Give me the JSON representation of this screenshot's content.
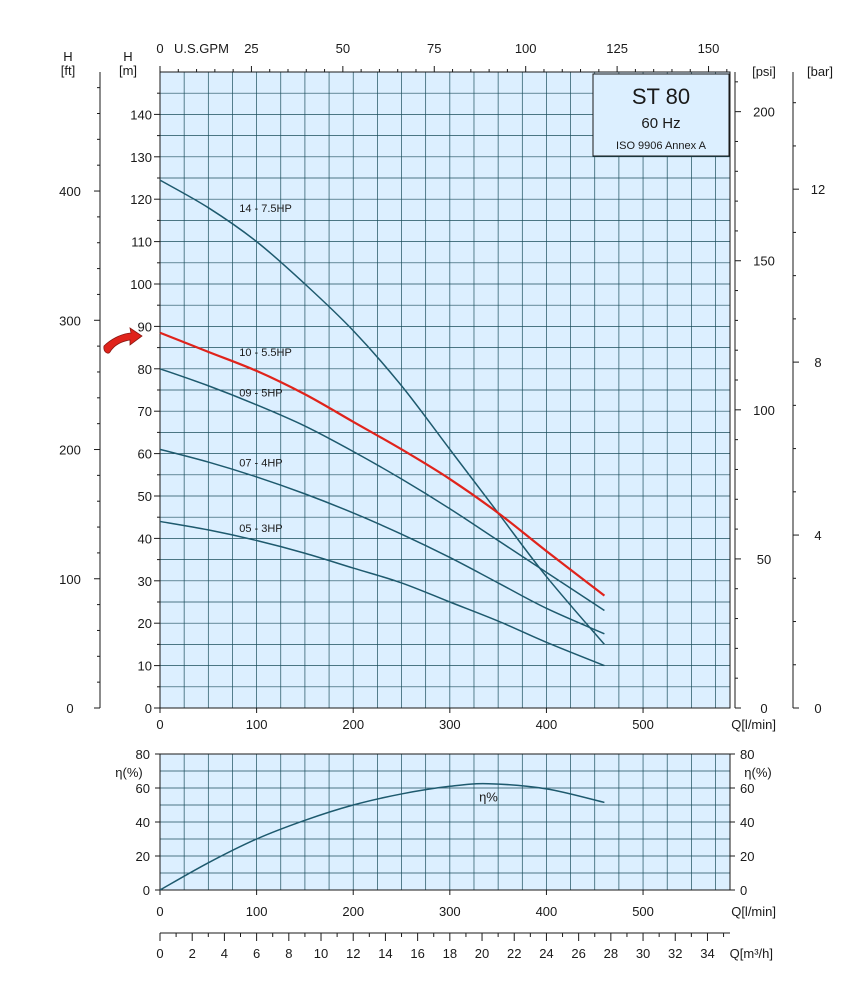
{
  "colors": {
    "grid_fill": "#dcefff",
    "grid_line": "#1b4e5c",
    "curve": "#1e5a6e",
    "highlight": "#e0231b",
    "axis": "#1a1a1a",
    "box_fill": "#dcefff"
  },
  "title_box": {
    "title": "ST 80",
    "frequency": "60 Hz",
    "standard": "ISO 9906 Annex A"
  },
  "arrow_icon": "red-curved-arrow-icon",
  "chart_data": [
    {
      "type": "line",
      "name": "head-curves",
      "x_axis": {
        "label": "Q[l/min]",
        "range": [
          0,
          590
        ],
        "ticks": [
          0,
          100,
          200,
          300,
          400,
          500
        ]
      },
      "x_top_axis": {
        "label": "U.S.GPM",
        "range": [
          0,
          155.87
        ],
        "ticks": [
          0,
          25,
          50,
          75,
          100,
          125,
          150
        ]
      },
      "y_axis": {
        "label": "H",
        "unit": "[m]",
        "range": [
          0,
          150
        ],
        "ticks": [
          0,
          10,
          20,
          30,
          40,
          50,
          60,
          70,
          80,
          90,
          100,
          110,
          120,
          130,
          140
        ]
      },
      "y_left_axis": {
        "label": "H",
        "unit": "[ft]",
        "range": [
          0,
          492.1
        ],
        "ticks": [
          0,
          100,
          200,
          300,
          400
        ]
      },
      "y_right_psi": {
        "unit": "[psi]",
        "range": [
          0,
          213.3
        ],
        "ticks": [
          0,
          50,
          100,
          150,
          200
        ]
      },
      "y_right_bar": {
        "unit": "[bar]",
        "range": [
          0,
          14.71
        ],
        "ticks": [
          0,
          4,
          8,
          12
        ]
      },
      "grid": true,
      "highlighted_series": "10 - 5.5HP",
      "series": [
        {
          "name": "14 - 7.5HP",
          "label_at": [
            82,
            117
          ],
          "points": [
            [
              0,
              124.5
            ],
            [
              50,
              118
            ],
            [
              100,
              110
            ],
            [
              150,
              100
            ],
            [
              200,
              89
            ],
            [
              250,
              76
            ],
            [
              300,
              61
            ],
            [
              350,
              46
            ],
            [
              400,
              31
            ],
            [
              460,
              15
            ]
          ]
        },
        {
          "name": "10 - 5.5HP",
          "label_at": [
            82,
            83
          ],
          "points": [
            [
              0,
              88.5
            ],
            [
              50,
              84
            ],
            [
              100,
              79.5
            ],
            [
              150,
              74
            ],
            [
              200,
              67.5
            ],
            [
              250,
              61
            ],
            [
              300,
              54
            ],
            [
              350,
              46
            ],
            [
              400,
              37
            ],
            [
              460,
              26.5
            ]
          ]
        },
        {
          "name": "09 - 5HP",
          "label_at": [
            82,
            73.5
          ],
          "points": [
            [
              0,
              80
            ],
            [
              50,
              76
            ],
            [
              100,
              71.5
            ],
            [
              150,
              66.5
            ],
            [
              200,
              60.5
            ],
            [
              250,
              54
            ],
            [
              300,
              47
            ],
            [
              350,
              39.5
            ],
            [
              400,
              32
            ],
            [
              460,
              23
            ]
          ]
        },
        {
          "name": "07 - 4HP",
          "label_at": [
            82,
            57
          ],
          "points": [
            [
              0,
              61
            ],
            [
              50,
              58
            ],
            [
              100,
              54.5
            ],
            [
              150,
              50.5
            ],
            [
              200,
              46
            ],
            [
              250,
              41
            ],
            [
              300,
              35.5
            ],
            [
              350,
              29.5
            ],
            [
              400,
              23.5
            ],
            [
              460,
              17.5
            ]
          ]
        },
        {
          "name": "05 - 3HP",
          "label_at": [
            82,
            41.5
          ],
          "points": [
            [
              0,
              44
            ],
            [
              50,
              42
            ],
            [
              100,
              39.5
            ],
            [
              150,
              36.5
            ],
            [
              200,
              33
            ],
            [
              250,
              29.5
            ],
            [
              300,
              25
            ],
            [
              350,
              20.5
            ],
            [
              400,
              15.5
            ],
            [
              460,
              10
            ]
          ]
        }
      ]
    },
    {
      "type": "line",
      "name": "efficiency-curve",
      "x_axis": {
        "label": "Q[l/min]",
        "range": [
          0,
          590
        ],
        "ticks": [
          0,
          100,
          200,
          300,
          400,
          500
        ]
      },
      "y_axis": {
        "label": "η(%)",
        "range": [
          0,
          80
        ],
        "ticks": [
          0,
          20,
          40,
          60,
          80
        ]
      },
      "grid": true,
      "series": [
        {
          "name": "η%",
          "label_at": [
            340,
            52
          ],
          "points": [
            [
              0,
              0
            ],
            [
              50,
              16
            ],
            [
              100,
              30
            ],
            [
              150,
              41
            ],
            [
              200,
              50
            ],
            [
              250,
              56.5
            ],
            [
              300,
              61
            ],
            [
              340,
              62.5
            ],
            [
              400,
              59.5
            ],
            [
              460,
              51.5
            ]
          ]
        }
      ]
    },
    {
      "type": "axis",
      "name": "flow-m3h-scale",
      "x_axis": {
        "label": "Q[m³/h]",
        "range": [
          0,
          35.4
        ],
        "ticks": [
          0,
          2,
          4,
          6,
          8,
          10,
          12,
          14,
          16,
          18,
          20,
          22,
          24,
          26,
          28,
          30,
          32,
          34
        ]
      }
    }
  ]
}
